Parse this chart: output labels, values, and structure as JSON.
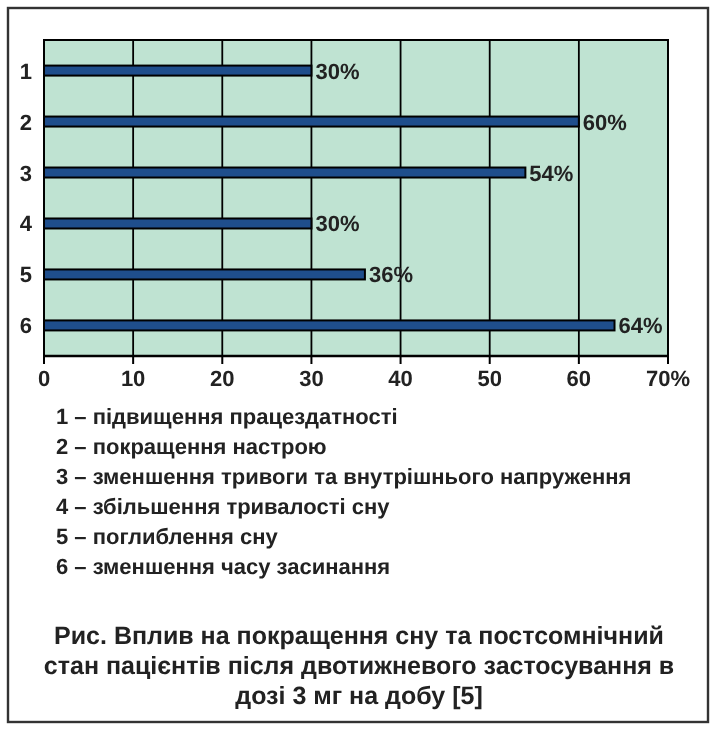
{
  "chart_data": {
    "type": "bar",
    "orientation": "horizontal",
    "title": "Рис. Вплив на покращення сну та постсомнічний стан пацієнтів після двотижневого застосування в дозі 3 мг на добу [5]",
    "categories": [
      "1",
      "2",
      "3",
      "4",
      "5",
      "6"
    ],
    "values": [
      30,
      60,
      54,
      30,
      36,
      64
    ],
    "value_labels": [
      "30%",
      "60%",
      "54%",
      "30%",
      "36%",
      "64%"
    ],
    "color": "#1f4e8c",
    "xlim": [
      0,
      70
    ],
    "xticks": [
      0,
      10,
      20,
      30,
      40,
      50,
      60,
      {
        "value": 70,
        "label": "70%"
      }
    ],
    "grid": "x",
    "annotations": [
      "1 – підвищення працездатності",
      "2 – покращення настрою",
      "3 – зменшення тривоги та внутрішнього напруження",
      "4 – збільшення тривалості сну",
      "5 – поглиблення сну",
      "6 – зменшення часу засинання"
    ]
  }
}
